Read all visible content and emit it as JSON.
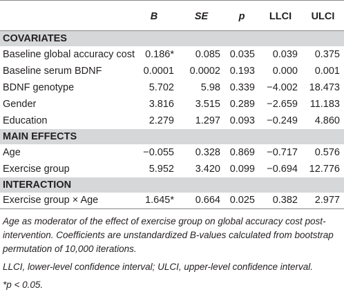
{
  "table": {
    "header": [
      "B",
      "SE",
      "p",
      "LLCI",
      "ULCI"
    ],
    "sections": [
      {
        "title": "COVARIATES",
        "rows": [
          [
            "Baseline global accuracy cost",
            "0.186*",
            "0.085",
            "0.035",
            "0.039",
            "0.375"
          ],
          [
            "Baseline serum BDNF",
            "0.0001",
            "0.0002",
            "0.193",
            "0.000",
            "0.001"
          ],
          [
            "BDNF genotype",
            "5.702",
            "5.98",
            "0.339",
            "−4.002",
            "18.473"
          ],
          [
            "Gender",
            "3.816",
            "3.515",
            "0.289",
            "−2.659",
            "11.183"
          ],
          [
            "Education",
            "2.279",
            "1.297",
            "0.093",
            "−0.249",
            "4.860"
          ]
        ]
      },
      {
        "title": "MAIN EFFECTS",
        "rows": [
          [
            "Age",
            "−0.055",
            "0.328",
            "0.869",
            "−0.717",
            "0.576"
          ],
          [
            "Exercise group",
            "5.952",
            "3.420",
            "0.099",
            "−0.694",
            "12.776"
          ]
        ]
      },
      {
        "title": "INTERACTION",
        "rows": [
          [
            "Exercise group × Age",
            "1.645*",
            "0.664",
            "0.025",
            "0.382",
            "2.977"
          ]
        ]
      }
    ],
    "notes": [
      "Age as moderator of the effect of exercise group on global accuracy cost post-intervention. Coefficients are unstandardized B-values calculated from bootstrap permutation of 10,000 iterations.",
      "LLCI, lower-level confidence interval; ULCI, upper-level confidence interval.",
      "*p < 0.05."
    ]
  }
}
